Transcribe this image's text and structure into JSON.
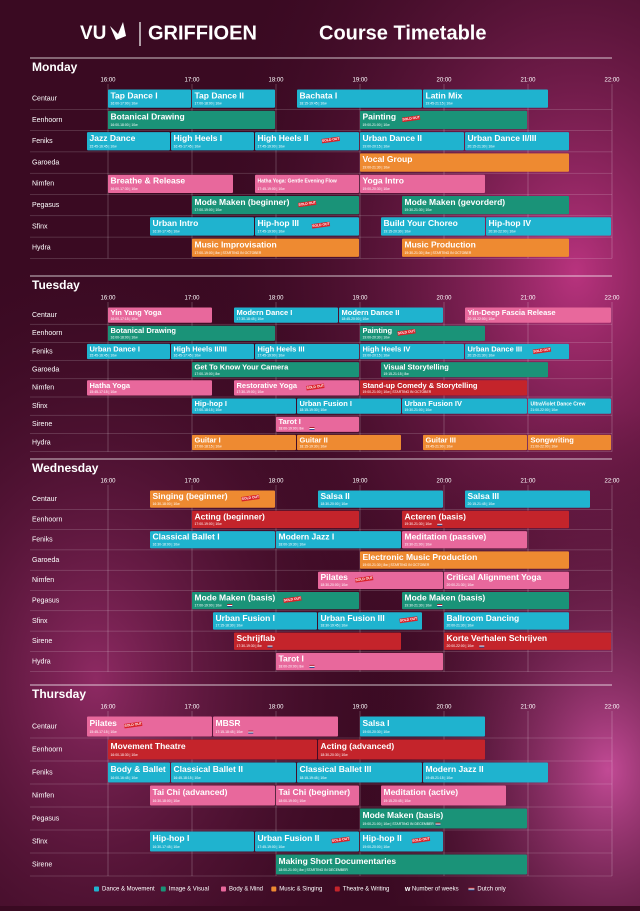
{
  "header": {
    "vu": "VU",
    "brand": "GRIFFIOEN",
    "title": "Course Timetable"
  },
  "times": [
    "16:00",
    "17:00",
    "18:00",
    "19:00",
    "20:00",
    "21:00",
    "22:00"
  ],
  "categories": [
    {
      "key": "dance",
      "label": "Dance & Movement",
      "color": "#1fb3cf"
    },
    {
      "key": "visual",
      "label": "Image & Visual",
      "color": "#1a9378"
    },
    {
      "key": "body",
      "label": "Body & Mind",
      "color": "#e8689c"
    },
    {
      "key": "music",
      "label": "Music & Singing",
      "color": "#ee8a31"
    },
    {
      "key": "theatre",
      "label": "Theatre & Writing",
      "color": "#c4242b"
    }
  ],
  "legend_notes": {
    "weeks_mark": "w",
    "weeks": "Number of weeks",
    "dutch": "Dutch only"
  },
  "badge": "SOLD OUT",
  "days": [
    {
      "name": "Monday",
      "rooms": [
        {
          "name": "Centaur",
          "courses": [
            {
              "name": "Tap Dance I",
              "detail": "16:00-17:00 | 10w",
              "cat": "dance"
            },
            {
              "name": "Tap Dance II",
              "detail": "17:00-18:00 | 10w",
              "cat": "dance"
            },
            {
              "name": "Bachata I",
              "detail": "18:15-19:45 | 10w",
              "cat": "dance"
            },
            {
              "name": "Latin Mix",
              "detail": "19:45-21:15 | 10w",
              "cat": "dance"
            }
          ]
        },
        {
          "name": "Eenhoorn",
          "courses": [
            {
              "name": "Botanical Drawing",
              "detail": "16:00-18:00 | 10w",
              "cat": "visual"
            },
            {
              "name": "Painting",
              "detail": "19:00-21:00 | 10w",
              "cat": "visual",
              "sold_out": true
            }
          ]
        },
        {
          "name": "Feniks",
          "courses": [
            {
              "name": "Jazz Dance",
              "detail": "15:45-16:45 | 10w",
              "cat": "dance"
            },
            {
              "name": "High Heels I",
              "detail": "16:45-17:45 | 10w",
              "cat": "dance"
            },
            {
              "name": "High Heels II",
              "detail": "17:45-19:00 | 10w",
              "cat": "dance",
              "sold_out": true
            },
            {
              "name": "Urban Dance II",
              "detail": "19:00-20:15 | 10w",
              "cat": "dance"
            },
            {
              "name": "Urban Dance II/III",
              "detail": "20:15-21:30 | 10w",
              "cat": "dance"
            }
          ]
        },
        {
          "name": "Garoeda",
          "courses": [
            {
              "name": "Vocal Group",
              "detail": "19:00-21:30 | 10w",
              "cat": "music"
            }
          ]
        },
        {
          "name": "Nimfen",
          "courses": [
            {
              "name": "Breathe & Release",
              "detail": "16:00-17:30 | 10w",
              "cat": "body"
            },
            {
              "name": "Hatha Yoga: Gentle Evening Flow",
              "detail": "17:45-19:00 | 10w",
              "cat": "body",
              "small": true
            },
            {
              "name": "Yoga Intro",
              "detail": "19:00-20:30 | 10w",
              "cat": "body"
            }
          ]
        },
        {
          "name": "Pegasus",
          "courses": [
            {
              "name": "Mode Maken (beginner)",
              "detail": "17:00-19:00 | 10w",
              "cat": "visual",
              "sold_out": true
            },
            {
              "name": "Mode Maken (gevorderd)",
              "detail": "19:30-21:30 | 10w",
              "cat": "visual"
            }
          ]
        },
        {
          "name": "Sfinx",
          "courses": [
            {
              "name": "Urban Intro",
              "detail": "16:30-17:45 | 10w",
              "cat": "dance"
            },
            {
              "name": "Hip-hop III",
              "detail": "17:45-19:00 | 10w",
              "cat": "dance",
              "sold_out": true
            },
            {
              "name": "Build Your Choreo",
              "detail": "19:15-20:30 | 10w",
              "cat": "dance"
            },
            {
              "name": "Hip-hop IV",
              "detail": "20:30-22:00 | 10w",
              "cat": "dance"
            }
          ]
        },
        {
          "name": "Hydra",
          "courses": [
            {
              "name": "Music Improvisation",
              "detail": "17:00-19:00 | 8w | STARTING IN OCTOBER",
              "cat": "music"
            },
            {
              "name": "Music Production",
              "detail": "19:30-21:30 | 8w | STARTING IN OCTOBER",
              "cat": "music"
            }
          ]
        }
      ]
    },
    {
      "name": "Tuesday",
      "rooms": [
        {
          "name": "Centaur",
          "courses": [
            {
              "name": "Yin Yang Yoga",
              "detail": "16:00-17:15 | 10w",
              "cat": "body"
            },
            {
              "name": "Modern Dance I",
              "detail": "17:30-18:45 | 10w",
              "cat": "dance"
            },
            {
              "name": "Modern Dance II",
              "detail": "18:45-20:00 | 10w",
              "cat": "dance"
            },
            {
              "name": "Yin-Deep Fascia Release",
              "detail": "20:15-22:00 | 10w",
              "cat": "body"
            }
          ]
        },
        {
          "name": "Eenhoorn",
          "courses": [
            {
              "name": "Botanical Drawing",
              "detail": "16:00-18:00 | 10w",
              "cat": "visual"
            },
            {
              "name": "Painting",
              "detail": "19:00-20:30 | 10w",
              "cat": "visual",
              "sold_out": true
            }
          ]
        },
        {
          "name": "Feniks",
          "courses": [
            {
              "name": "Urban Dance I",
              "detail": "15:45-16:45 | 10w",
              "cat": "dance"
            },
            {
              "name": "High Heels II/III",
              "detail": "16:45-17:45 | 10w",
              "cat": "dance"
            },
            {
              "name": "High Heels III",
              "detail": "17:45-19:00 | 10w",
              "cat": "dance"
            },
            {
              "name": "High Heels IV",
              "detail": "19:00-20:15 | 10w",
              "cat": "dance"
            },
            {
              "name": "Urban Dance III",
              "detail": "20:15-21:30 | 10w",
              "cat": "dance",
              "sold_out": true
            }
          ]
        },
        {
          "name": "Garoeda",
          "courses": [
            {
              "name": "Get To Know Your Camera",
              "detail": "17:00-19:00 | 8w",
              "cat": "visual"
            },
            {
              "name": "Visual Storytelling",
              "detail": "19:15-21:15 | 8w",
              "cat": "visual"
            }
          ]
        },
        {
          "name": "Nimfen",
          "courses": [
            {
              "name": "Hatha Yoga",
              "detail": "15:45-17:15 | 10w",
              "cat": "body"
            },
            {
              "name": "Restorative Yoga",
              "detail": "17:30-19:00 | 10w",
              "cat": "body",
              "sold_out": true
            },
            {
              "name": "Stand-up Comedy & Storytelling",
              "detail": "19:00-21:00 | 10w | STARTING IN OCTOBER",
              "cat": "theatre"
            }
          ]
        },
        {
          "name": "Sfinx",
          "courses": [
            {
              "name": "Hip-hop I",
              "detail": "17:00-18:15 | 10w",
              "cat": "dance"
            },
            {
              "name": "Urban Fusion I",
              "detail": "18:15-19:30 | 10w",
              "cat": "dance"
            },
            {
              "name": "Urban Fusion IV",
              "detail": "19:30-21:00 | 10w",
              "cat": "dance"
            },
            {
              "name": "UltraViolet Dance Crew",
              "detail": "21:00-22:00 | 10w",
              "cat": "dance",
              "small": true
            }
          ]
        },
        {
          "name": "Sirene",
          "courses": [
            {
              "name": "Tarot I",
              "detail": "18:00-19:00 | 8w",
              "cat": "body",
              "dutch": true
            }
          ]
        },
        {
          "name": "Hydra",
          "courses": [
            {
              "name": "Guitar I",
              "detail": "17:00-18:15 | 10w",
              "cat": "music"
            },
            {
              "name": "Guitar II",
              "detail": "18:15-19:30 | 10w",
              "cat": "music"
            },
            {
              "name": "Guitar III",
              "detail": "19:45-21:00 | 10w",
              "cat": "music"
            },
            {
              "name": "Songwriting",
              "detail": "21:00-22:00 | 10w",
              "cat": "music"
            }
          ]
        }
      ]
    },
    {
      "name": "Wednesday",
      "rooms": [
        {
          "name": "Centaur",
          "courses": [
            {
              "name": "Singing (beginner)",
              "detail": "16:30-18:00 | 10w",
              "cat": "music",
              "sold_out": true
            },
            {
              "name": "Salsa II",
              "detail": "18:30-20:00 | 10w",
              "cat": "dance"
            },
            {
              "name": "Salsa III",
              "detail": "20:15-21:45 | 10w",
              "cat": "dance"
            }
          ]
        },
        {
          "name": "Eenhoorn",
          "courses": [
            {
              "name": "Acting (beginner)",
              "detail": "17:00-19:00 | 10w",
              "cat": "theatre"
            },
            {
              "name": "Acteren (basis)",
              "detail": "19:30-21:30 | 10w",
              "cat": "theatre",
              "dutch": true
            }
          ]
        },
        {
          "name": "Feniks",
          "courses": [
            {
              "name": "Classical Ballet I",
              "detail": "16:30-18:00 | 10w",
              "cat": "dance"
            },
            {
              "name": "Modern Jazz I",
              "detail": "18:00-19:30 | 10w",
              "cat": "dance"
            },
            {
              "name": "Meditation (passive)",
              "detail": "19:30-21:00 | 10w",
              "cat": "body"
            }
          ]
        },
        {
          "name": "Garoeda",
          "courses": [
            {
              "name": "Electronic Music Production",
              "detail": "19:00-21:30 | 8w | STARTING IN OCTOBER",
              "cat": "music"
            }
          ]
        },
        {
          "name": "Nimfen",
          "courses": [
            {
              "name": "Pilates",
              "detail": "18:30-20:00 | 10w",
              "cat": "body",
              "sold_out": true
            },
            {
              "name": "Critical Alignment Yoga",
              "detail": "20:00-21:30 | 10w",
              "cat": "body"
            }
          ]
        },
        {
          "name": "Pegasus",
          "courses": [
            {
              "name": "Mode Maken (basis)",
              "detail": "17:00-19:00 | 10w",
              "cat": "visual",
              "sold_out": true,
              "dutch": true
            },
            {
              "name": "Mode Maken (basis)",
              "detail": "19:30-21:30 | 10w",
              "cat": "visual",
              "dutch": true
            }
          ]
        },
        {
          "name": "Sfinx",
          "courses": [
            {
              "name": "Urban Fusion I",
              "detail": "17:15-18:30 | 10w",
              "cat": "dance"
            },
            {
              "name": "Urban Fusion III",
              "detail": "18:30-19:45 | 10w",
              "cat": "dance",
              "sold_out": true
            },
            {
              "name": "Ballroom Dancing",
              "detail": "20:00-21:30 | 10w",
              "cat": "dance"
            }
          ]
        },
        {
          "name": "Sirene",
          "courses": [
            {
              "name": "Schrijflab",
              "detail": "17:30-19:30 | 8w",
              "cat": "theatre",
              "dutch": true
            },
            {
              "name": "Korte Verhalen Schrijven",
              "detail": "20:00-22:00 | 10w",
              "cat": "theatre",
              "dutch": true
            }
          ]
        },
        {
          "name": "Hydra",
          "courses": [
            {
              "name": "Tarot I",
              "detail": "18:00-20:00 | 8w",
              "cat": "body",
              "dutch": true
            }
          ]
        }
      ]
    },
    {
      "name": "Thursday",
      "rooms": [
        {
          "name": "Centaur",
          "courses": [
            {
              "name": "Pilates",
              "detail": "15:45-17:15 | 10w",
              "cat": "body",
              "sold_out": true
            },
            {
              "name": "MBSR",
              "detail": "17:15-18:45 | 10w",
              "cat": "body",
              "dutch": true
            },
            {
              "name": "Salsa I",
              "detail": "19:00-20:30 | 10w",
              "cat": "dance"
            }
          ]
        },
        {
          "name": "Eenhoorn",
          "courses": [
            {
              "name": "Movement Theatre",
              "detail": "16:00-18:30 | 10w",
              "cat": "theatre"
            },
            {
              "name": "Acting (advanced)",
              "detail": "18:30-20:30 | 10w",
              "cat": "theatre"
            }
          ]
        },
        {
          "name": "Feniks",
          "courses": [
            {
              "name": "Body & Ballet",
              "detail": "16:00-16:45 | 10w",
              "cat": "dance"
            },
            {
              "name": "Classical Ballet II",
              "detail": "16:45-18:15 | 10w",
              "cat": "dance"
            },
            {
              "name": "Classical Ballet III",
              "detail": "18:15-19:45 | 10w",
              "cat": "dance"
            },
            {
              "name": "Modern Jazz II",
              "detail": "19:45-21:15 | 10w",
              "cat": "dance"
            }
          ]
        },
        {
          "name": "Nimfen",
          "courses": [
            {
              "name": "Tai Chi (advanced)",
              "detail": "16:30-18:00 | 10w",
              "cat": "body"
            },
            {
              "name": "Tai Chi (beginner)",
              "detail": "18:00-19:00 | 10w",
              "cat": "body"
            },
            {
              "name": "Meditation (active)",
              "detail": "19:15-20:45 | 10w",
              "cat": "body"
            }
          ]
        },
        {
          "name": "Pegasus",
          "courses": [
            {
              "name": "Mode Maken (basis)",
              "detail": "19:00-21:00 | 10w | STARTING IN DECEMBER",
              "cat": "visual",
              "dutch": true
            }
          ]
        },
        {
          "name": "Sfinx",
          "courses": [
            {
              "name": "Hip-hop I",
              "detail": "16:30-17:45 | 10w",
              "cat": "dance"
            },
            {
              "name": "Urban Fusion II",
              "detail": "17:45-19:00 | 10w",
              "cat": "dance",
              "sold_out": true
            },
            {
              "name": "Hip-hop II",
              "detail": "19:00-20:00 | 10w",
              "cat": "dance",
              "sold_out": true
            }
          ]
        },
        {
          "name": "Sirene",
          "courses": [
            {
              "name": "Making Short Documentaries",
              "detail": "18:00-21:00 | 8w | STARTING IN DECEMBER",
              "cat": "visual"
            }
          ]
        }
      ]
    }
  ]
}
